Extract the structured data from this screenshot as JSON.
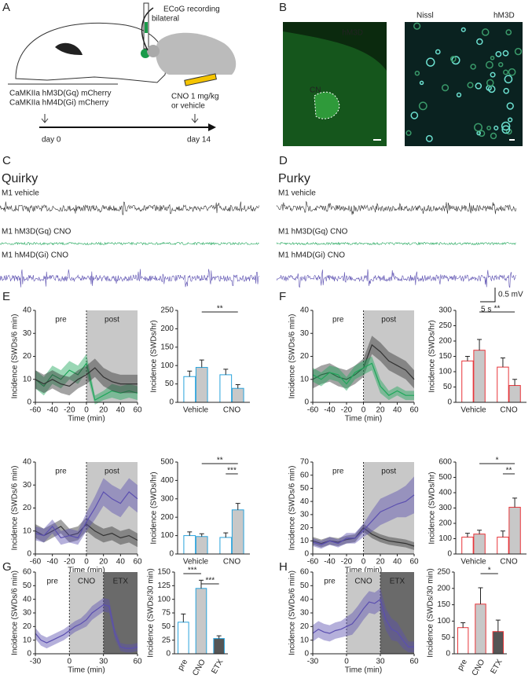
{
  "labels": {
    "letters": [
      "A",
      "B",
      "C",
      "D",
      "E",
      "F",
      "G",
      "H"
    ],
    "A": {
      "bilateral": "bilateral",
      "ecog": "ECoG recording",
      "virus1": "CaMKIIa hM3D(Gq) mCherry",
      "virus2": "CaMKIIa hM4D(Gi) mCherry",
      "cno1": "CNO 1 mg/kg",
      "cno2": "or vehicle",
      "day0": "day 0",
      "day14": "day 14"
    },
    "B": {
      "left_label": "hM3D",
      "cn": "CN",
      "stain1": "Nissl",
      "stain2": "hM3D"
    },
    "C": {
      "title": "Quirky",
      "traces": [
        "M1 vehicle",
        "M1 hM3D(Gq) CNO",
        "M1 hM4D(Gi) CNO"
      ]
    },
    "D": {
      "title": "Purky",
      "traces": [
        "M1 vehicle",
        "M1 hM3D(Gq) CNO",
        "M1 hM4D(Gi) CNO"
      ],
      "scale_v": "0.5 mV",
      "scale_t": "5 s"
    }
  },
  "chart_data": [
    {
      "type": "line",
      "ylabel": "Incidence (SWDs/6 min)",
      "xlabel": "Time (min)",
      "xlim": [
        -60,
        60
      ],
      "xticks": [
        -60,
        -40,
        -20,
        0,
        20,
        40,
        60
      ],
      "ylim": [
        0,
        40
      ],
      "yticks": [
        0,
        10,
        20,
        30,
        40
      ],
      "phases": [
        {
          "label": "pre"
        },
        {
          "label": "post",
          "start": 0,
          "color": "#c8c8c8"
        }
      ],
      "x": [
        -60,
        -50,
        -40,
        -30,
        -20,
        -10,
        0,
        10,
        20,
        30,
        40,
        50,
        60
      ],
      "series": [
        {
          "color": "#1fa65a",
          "values": [
            10,
            7,
            12,
            10,
            14,
            12,
            17,
            1,
            3,
            5,
            4,
            5,
            4
          ],
          "errors": [
            4,
            4,
            4,
            4,
            4,
            4,
            4,
            2,
            2,
            3,
            3,
            3,
            3
          ]
        },
        {
          "color": "#333333",
          "values": [
            10,
            8,
            10,
            8,
            7,
            10,
            12,
            15,
            11,
            9,
            8,
            8,
            8
          ],
          "errors": [
            4,
            4,
            4,
            4,
            4,
            4,
            4,
            4,
            4,
            4,
            4,
            4,
            4
          ]
        }
      ]
    },
    {
      "type": "bar",
      "ylabel": "Incidence (SWDs/hr)",
      "ylim": [
        0,
        250
      ],
      "yticks": [
        0,
        50,
        100,
        150,
        200,
        250
      ],
      "categories": [
        "Vehicle",
        "CNO"
      ],
      "series": [
        {
          "color": "#29a3dc",
          "fill": "#ffffff",
          "values": [
            70,
            75
          ],
          "errors": [
            15,
            15
          ]
        },
        {
          "color": "#29a3dc",
          "fill": "#c8c8c8",
          "values": [
            95,
            38
          ],
          "errors": [
            20,
            10
          ]
        }
      ],
      "significance": [
        {
          "label": "**",
          "from": 1,
          "to": 3
        }
      ]
    },
    {
      "type": "line",
      "ylabel": "Incidence (SWDs/6 min)",
      "xlabel": "Time (min)",
      "xlim": [
        -60,
        60
      ],
      "xticks": [
        -60,
        -40,
        -20,
        0,
        20,
        40,
        60
      ],
      "ylim": [
        0,
        40
      ],
      "yticks": [
        0,
        10,
        20,
        30,
        40
      ],
      "phases": [
        {
          "label": "pre"
        },
        {
          "label": "post",
          "start": 0,
          "color": "#c8c8c8"
        }
      ],
      "x": [
        -60,
        -50,
        -40,
        -30,
        -20,
        -10,
        0,
        10,
        20,
        30,
        40,
        50,
        60
      ],
      "series": [
        {
          "color": "#333333",
          "values": [
            10,
            8,
            10,
            12,
            8,
            9,
            13,
            10,
            8,
            9,
            7,
            8,
            6
          ],
          "errors": [
            3,
            3,
            3,
            3,
            3,
            3,
            3,
            3,
            3,
            3,
            3,
            3,
            3
          ]
        },
        {
          "color": "#5b4fb0",
          "values": [
            9,
            8,
            12,
            7,
            8,
            7,
            14,
            20,
            27,
            24,
            22,
            27,
            24
          ],
          "errors": [
            3,
            3,
            3,
            3,
            3,
            3,
            4,
            5,
            6,
            6,
            6,
            6,
            6
          ]
        }
      ]
    },
    {
      "type": "bar",
      "ylabel": "Incidence (SWDs/hr)",
      "ylim": [
        0,
        500
      ],
      "yticks": [
        0,
        100,
        200,
        300,
        400,
        500
      ],
      "categories": [
        "Vehicle",
        "CNO"
      ],
      "series": [
        {
          "color": "#29a3dc",
          "fill": "#ffffff",
          "values": [
            100,
            90
          ],
          "errors": [
            20,
            25
          ]
        },
        {
          "color": "#29a3dc",
          "fill": "#c8c8c8",
          "values": [
            95,
            240
          ],
          "errors": [
            15,
            35
          ]
        }
      ],
      "significance": [
        {
          "label": "**",
          "from": 1,
          "to": 3
        },
        {
          "label": "***",
          "from": 2,
          "to": 3
        }
      ]
    },
    {
      "type": "line",
      "ylabel": "Incidence (SWDs/6 min)",
      "xlabel": "Time (min)",
      "xlim": [
        -60,
        60
      ],
      "xticks": [
        -60,
        -40,
        -20,
        0,
        20,
        40,
        60
      ],
      "ylim": [
        0,
        40
      ],
      "yticks": [
        0,
        10,
        20,
        30,
        40
      ],
      "phases": [
        {
          "label": "pre"
        },
        {
          "label": "post",
          "start": 0,
          "color": "#c8c8c8"
        }
      ],
      "x": [
        -60,
        -50,
        -40,
        -30,
        -20,
        -10,
        0,
        10,
        20,
        30,
        40,
        50,
        60
      ],
      "series": [
        {
          "color": "#333333",
          "values": [
            10,
            12,
            13,
            11,
            10,
            12,
            15,
            25,
            22,
            18,
            16,
            14,
            10
          ],
          "errors": [
            4,
            4,
            4,
            4,
            4,
            4,
            4,
            4,
            4,
            4,
            4,
            4,
            4
          ]
        },
        {
          "color": "#1fa65a",
          "values": [
            12,
            10,
            13,
            12,
            8,
            13,
            15,
            17,
            7,
            3,
            5,
            3,
            3
          ],
          "errors": [
            3,
            3,
            3,
            3,
            3,
            3,
            3,
            3,
            3,
            2,
            2,
            2,
            2
          ]
        }
      ]
    },
    {
      "type": "bar",
      "ylabel": "Incidence (SWDs/hr)",
      "ylim": [
        0,
        300
      ],
      "yticks": [
        0,
        50,
        100,
        150,
        200,
        250,
        300
      ],
      "categories": [
        "Vehicle",
        "CNO"
      ],
      "series": [
        {
          "color": "#e8353a",
          "fill": "#ffffff",
          "values": [
            135,
            115
          ],
          "errors": [
            15,
            30
          ]
        },
        {
          "color": "#e8353a",
          "fill": "#c8c8c8",
          "values": [
            170,
            55
          ],
          "errors": [
            35,
            20
          ]
        }
      ],
      "significance": [
        {
          "label": "**",
          "from": 1,
          "to": 3
        }
      ]
    },
    {
      "type": "line",
      "ylabel": "Incidence (SWDs/6 min)",
      "xlabel": "Time (min)",
      "xlim": [
        -60,
        60
      ],
      "xticks": [
        -60,
        -40,
        -20,
        0,
        20,
        40,
        60
      ],
      "ylim": [
        0,
        70
      ],
      "yticks": [
        0,
        10,
        20,
        30,
        40,
        50,
        60,
        70
      ],
      "phases": [
        {
          "label": "pre"
        },
        {
          "label": "post",
          "start": 0,
          "color": "#c8c8c8"
        }
      ],
      "x": [
        -60,
        -50,
        -40,
        -30,
        -20,
        -10,
        0,
        10,
        20,
        30,
        40,
        50,
        60
      ],
      "series": [
        {
          "color": "#333333",
          "values": [
            10,
            8,
            10,
            9,
            11,
            12,
            20,
            15,
            12,
            10,
            9,
            8,
            6
          ],
          "errors": [
            3,
            3,
            3,
            3,
            3,
            3,
            3,
            3,
            3,
            3,
            3,
            3,
            3
          ]
        },
        {
          "color": "#5b4fb0",
          "values": [
            9,
            7,
            10,
            8,
            12,
            12,
            18,
            25,
            32,
            35,
            38,
            40,
            45
          ],
          "errors": [
            3,
            3,
            3,
            3,
            4,
            4,
            5,
            8,
            10,
            10,
            10,
            12,
            14
          ]
        }
      ]
    },
    {
      "type": "bar",
      "ylabel": "Incidence (SWDs/hr)",
      "ylim": [
        0,
        600
      ],
      "yticks": [
        0,
        100,
        200,
        300,
        400,
        500,
        600
      ],
      "categories": [
        "Vehicle",
        "CNO"
      ],
      "series": [
        {
          "color": "#e8353a",
          "fill": "#ffffff",
          "values": [
            110,
            110
          ],
          "errors": [
            25,
            40
          ]
        },
        {
          "color": "#e8353a",
          "fill": "#c8c8c8",
          "values": [
            130,
            305
          ],
          "errors": [
            25,
            60
          ]
        }
      ],
      "significance": [
        {
          "label": "*",
          "from": 1,
          "to": 3
        },
        {
          "label": "**",
          "from": 2,
          "to": 3
        }
      ]
    },
    {
      "type": "line",
      "ylabel": "Incidence (SWDs/6 min)",
      "xlabel": "Time (min)",
      "xlim": [
        -30,
        60
      ],
      "xticks": [
        -30,
        0,
        30,
        60
      ],
      "ylim": [
        0,
        60
      ],
      "yticks": [
        0,
        10,
        20,
        30,
        40,
        50,
        60
      ],
      "phases": [
        {
          "label": "pre"
        },
        {
          "label": "CNO",
          "start": 0,
          "color": "#c8c8c8"
        },
        {
          "label": "ETX",
          "start": 30,
          "color": "#6a6a6a"
        }
      ],
      "x": [
        -30,
        -25,
        -20,
        -15,
        -10,
        -5,
        0,
        5,
        10,
        15,
        20,
        25,
        30,
        35,
        40,
        45,
        50,
        55,
        60
      ],
      "series": [
        {
          "color": "#5b4fb0",
          "values": [
            15,
            10,
            8,
            10,
            12,
            14,
            17,
            20,
            22,
            25,
            30,
            33,
            36,
            35,
            15,
            5,
            4,
            4,
            5
          ],
          "errors": [
            4,
            4,
            4,
            4,
            4,
            4,
            4,
            4,
            4,
            5,
            5,
            5,
            5,
            5,
            4,
            3,
            3,
            3,
            3
          ]
        }
      ]
    },
    {
      "type": "bar",
      "ylabel": "Incidence (SWDs/30 min)",
      "ylim": [
        0,
        150
      ],
      "yticks": [
        0,
        25,
        50,
        75,
        100,
        125,
        150
      ],
      "categories": [
        "pre",
        "CNO",
        "ETX"
      ],
      "rotate_labels": true,
      "series": [
        {
          "color": "#29a3dc",
          "fill": [
            "#ffffff",
            "#c8c8c8",
            "#555555"
          ],
          "values": [
            58,
            120,
            28
          ],
          "errors": [
            15,
            15,
            5
          ]
        }
      ],
      "significance": [
        {
          "label": "***",
          "from": 0,
          "to": 1
        },
        {
          "label": "***",
          "from": 1,
          "to": 2
        }
      ]
    },
    {
      "type": "line",
      "ylabel": "Incidence (SWDs/6 min)",
      "xlabel": "Time (min)",
      "xlim": [
        -30,
        60
      ],
      "xticks": [
        -30,
        0,
        30,
        60
      ],
      "ylim": [
        0,
        60
      ],
      "yticks": [
        0,
        10,
        20,
        30,
        40,
        50,
        60
      ],
      "phases": [
        {
          "label": "pre"
        },
        {
          "label": "CNO",
          "start": 0,
          "color": "#c8c8c8"
        },
        {
          "label": "ETX",
          "start": 30,
          "color": "#6a6a6a"
        }
      ],
      "x": [
        -30,
        -25,
        -20,
        -15,
        -10,
        -5,
        0,
        5,
        10,
        15,
        20,
        25,
        30,
        35,
        40,
        45,
        50,
        55,
        60
      ],
      "series": [
        {
          "color": "#5b4fb0",
          "values": [
            15,
            18,
            16,
            15,
            17,
            18,
            20,
            22,
            27,
            33,
            38,
            37,
            40,
            25,
            18,
            16,
            10,
            5,
            5
          ],
          "errors": [
            6,
            6,
            6,
            6,
            6,
            6,
            7,
            8,
            8,
            8,
            8,
            8,
            8,
            8,
            8,
            7,
            6,
            4,
            4
          ]
        }
      ]
    },
    {
      "type": "bar",
      "ylabel": "Incidence (SWDs/30 min)",
      "ylim": [
        0,
        250
      ],
      "yticks": [
        0,
        50,
        100,
        150,
        200,
        250
      ],
      "categories": [
        "pre",
        "CNO",
        "ETX"
      ],
      "rotate_labels": true,
      "series": [
        {
          "color": "#e8353a",
          "fill": [
            "#ffffff",
            "#c8c8c8",
            "#555555"
          ],
          "values": [
            80,
            152,
            68
          ],
          "errors": [
            15,
            50,
            35
          ]
        }
      ],
      "significance": [
        {
          "label": "*",
          "from": 1,
          "to": 2
        }
      ]
    }
  ]
}
